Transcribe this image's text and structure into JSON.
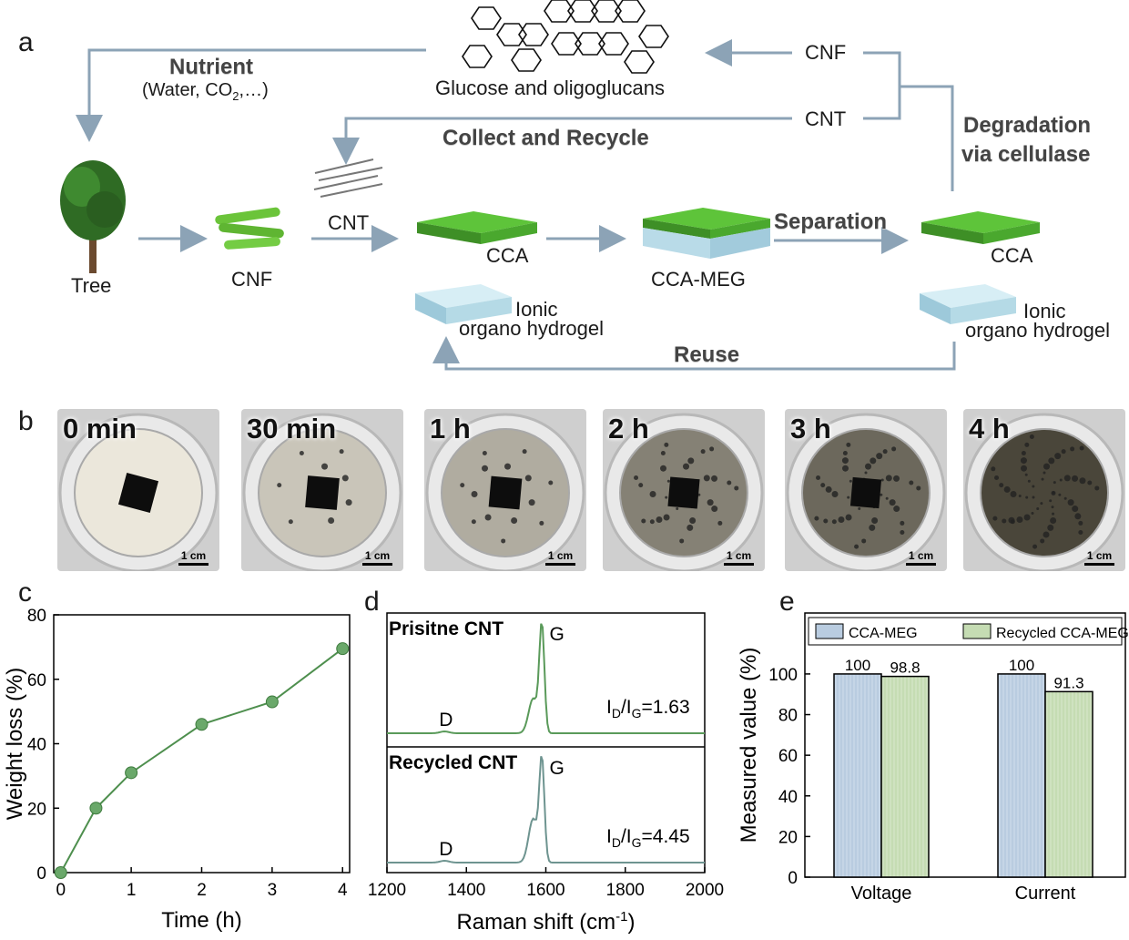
{
  "panel_labels": {
    "a": "a",
    "b": "b",
    "c": "c",
    "d": "d",
    "e": "e"
  },
  "panel_a": {
    "glucose": "Glucose and oligoglucans",
    "nutrient_title": "Nutrient",
    "nutrient_detail": "(Water, CO",
    "nutrient_sub": "2",
    "nutrient_tail": ",…)",
    "cnf_return": "CNF",
    "cnt_return": "CNT",
    "collect": "Collect and Recycle",
    "degradation_1": "Degradation",
    "degradation_2": "via cellulase",
    "tree": "Tree",
    "cnf": "CNF",
    "cnt": "CNT",
    "cca": "CCA",
    "cca_meg": "CCA-MEG",
    "separation": "Separation",
    "cca_right": "CCA",
    "ionic_1": "Ionic",
    "ionic_2": "organo hydrogel",
    "ionic_right_1": "Ionic",
    "ionic_right_2": "organo hydrogel",
    "reuse": "Reuse"
  },
  "panel_b": {
    "scale_label": "1 cm",
    "photos": [
      {
        "label": "0 min",
        "degradation": 0.0
      },
      {
        "label": "30 min",
        "degradation": 0.2
      },
      {
        "label": "1 h",
        "degradation": 0.35
      },
      {
        "label": "2 h",
        "degradation": 0.6
      },
      {
        "label": "3 h",
        "degradation": 0.75
      },
      {
        "label": "4 h",
        "degradation": 0.95
      }
    ]
  },
  "chart_data": [
    {
      "type": "line",
      "xlabel": "Time (h)",
      "ylabel": "Weight loss (%)",
      "xlim": [
        -0.1,
        4.1
      ],
      "ylim": [
        0,
        80
      ],
      "xticks": [
        "0",
        "1",
        "2",
        "3",
        "4"
      ],
      "yticks": [
        "0",
        "20",
        "40",
        "60",
        "80"
      ],
      "x": [
        0,
        0.5,
        1,
        2,
        3,
        4
      ],
      "y": [
        0,
        20,
        31,
        46,
        53,
        69.5
      ],
      "color": "#4e8f4e"
    },
    {
      "type": "line",
      "xlabel": "Raman shift (cm",
      "xlabel_sup": "-1",
      "xlabel_tail": ")",
      "xlim": [
        1200,
        2000
      ],
      "xticks": [
        "1200",
        "1400",
        "1600",
        "1800",
        "2000"
      ],
      "series": [
        {
          "name": "Prisitne CNT",
          "color": "#5a9a5a",
          "ratio_main": "I",
          "ratio_sub1": "D",
          "ratio_mid": "/I",
          "ratio_sub2": "G",
          "ratio_value": "=1.63",
          "d_label": "D",
          "g_label": "G"
        },
        {
          "name": "Recycled CNT",
          "color": "#6e9490",
          "ratio_main": "I",
          "ratio_sub1": "D",
          "ratio_mid": "/I",
          "ratio_sub2": "G",
          "ratio_value": "=4.45",
          "d_label": "D",
          "g_label": "G"
        }
      ]
    },
    {
      "type": "bar",
      "categories": [
        "Voltage",
        "Current"
      ],
      "ylabel": "Measured value (%)",
      "ylim": [
        0,
        130
      ],
      "yticks": [
        "0",
        "20",
        "40",
        "60",
        "80",
        "100"
      ],
      "series": [
        {
          "name": "CCA-MEG",
          "values": [
            100,
            100
          ],
          "labels": [
            "100",
            "100"
          ],
          "color": "#b9cce0"
        },
        {
          "name": "Recycled CCA-MEG",
          "values": [
            98.8,
            91.3
          ],
          "labels": [
            "98.8",
            "91.3"
          ],
          "color": "#c5dcb3"
        }
      ]
    }
  ]
}
